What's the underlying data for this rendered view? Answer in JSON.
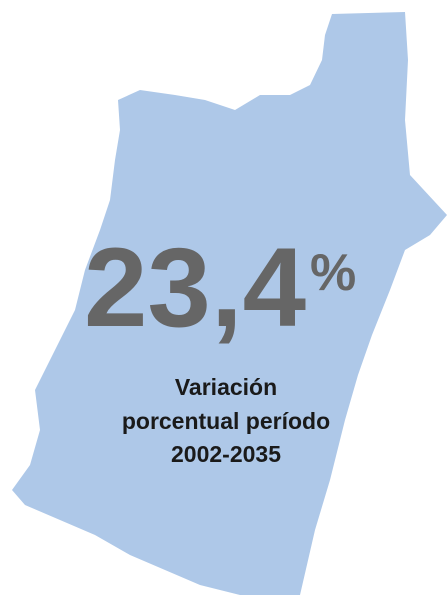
{
  "figure": {
    "value": "23,4",
    "unit": "%",
    "caption": [
      "Variación",
      "porcentual período",
      "2002-2035"
    ]
  }
}
